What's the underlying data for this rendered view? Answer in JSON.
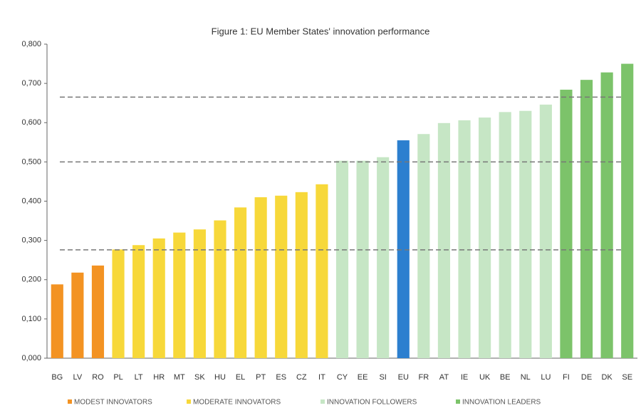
{
  "chart_data": {
    "type": "bar",
    "title": "Figure 1: EU Member States' innovation performance",
    "categories": [
      "BG",
      "LV",
      "RO",
      "PL",
      "LT",
      "HR",
      "MT",
      "SK",
      "HU",
      "EL",
      "PT",
      "ES",
      "CZ",
      "IT",
      "CY",
      "EE",
      "SI",
      "EU",
      "FR",
      "AT",
      "IE",
      "UK",
      "BE",
      "NL",
      "LU",
      "FI",
      "DE",
      "DK",
      "SE"
    ],
    "values": [
      0.188,
      0.218,
      0.236,
      0.277,
      0.288,
      0.305,
      0.32,
      0.328,
      0.351,
      0.384,
      0.41,
      0.414,
      0.423,
      0.443,
      0.503,
      0.503,
      0.512,
      0.555,
      0.571,
      0.599,
      0.606,
      0.613,
      0.627,
      0.63,
      0.646,
      0.684,
      0.709,
      0.728,
      0.75
    ],
    "colors": [
      "#f39323",
      "#f39323",
      "#f39323",
      "#f7d83a",
      "#f7d83a",
      "#f7d83a",
      "#f7d83a",
      "#f7d83a",
      "#f7d83a",
      "#f7d83a",
      "#f7d83a",
      "#f7d83a",
      "#f7d83a",
      "#f7d83a",
      "#c6e6c5",
      "#c6e6c5",
      "#c6e6c5",
      "#2c7fcf",
      "#c6e6c5",
      "#c6e6c5",
      "#c6e6c5",
      "#c6e6c5",
      "#c6e6c5",
      "#c6e6c5",
      "#c6e6c5",
      "#7cc36a",
      "#7cc36a",
      "#7cc36a",
      "#7cc36a"
    ],
    "legend": [
      {
        "name": "MODEST INNOVATORS",
        "color": "#f39323"
      },
      {
        "name": "MODERATE INNOVATORS",
        "color": "#f7d83a"
      },
      {
        "name": "INNOVATION FOLLOWERS",
        "color": "#c6e6c5"
      },
      {
        "name": "INNOVATION LEADERS",
        "color": "#7cc36a"
      }
    ],
    "reference_lines": [
      0.276,
      0.5,
      0.665
    ],
    "ylim": [
      0,
      0.8
    ],
    "yticks": [
      {
        "value": 0,
        "label": "0,000"
      },
      {
        "value": 0.1,
        "label": "0,100"
      },
      {
        "value": 0.2,
        "label": "0,200"
      },
      {
        "value": 0.3,
        "label": "0,300"
      },
      {
        "value": 0.4,
        "label": "0,400"
      },
      {
        "value": 0.5,
        "label": "0,500"
      },
      {
        "value": 0.6,
        "label": "0,600"
      },
      {
        "value": 0.7,
        "label": "0,700"
      },
      {
        "value": 0.8,
        "label": "0,800"
      }
    ]
  }
}
